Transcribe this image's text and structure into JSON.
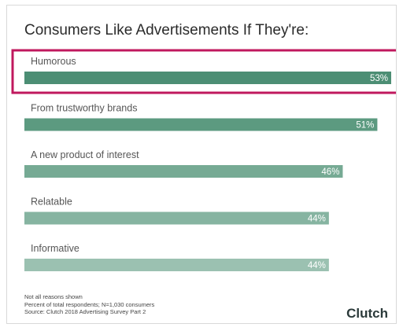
{
  "chart_data": {
    "type": "bar",
    "orientation": "horizontal",
    "title": "Consumers Like Advertisements If They're:",
    "categories": [
      "Humorous",
      "From trustworthy brands",
      "A new product of interest",
      "Relatable",
      "Informative"
    ],
    "values": [
      53,
      51,
      46,
      44,
      44
    ],
    "data_labels": [
      "53%",
      "51%",
      "46%",
      "44%",
      "44%"
    ],
    "unit": "%",
    "xlim": [
      0,
      53
    ],
    "bar_colors": [
      "#4c8e74",
      "#5c9a80",
      "#76aa94",
      "#86b4a1",
      "#9bc1b1"
    ],
    "highlight": {
      "category": "Humorous",
      "color": "#c0185e"
    }
  },
  "footnotes": [
    "Not all reasons shown",
    "Percent of total respondents; N=1,030 consumers",
    "Source: Clutch 2018 Advertising Survey Part 2"
  ],
  "brand": "Clutch"
}
